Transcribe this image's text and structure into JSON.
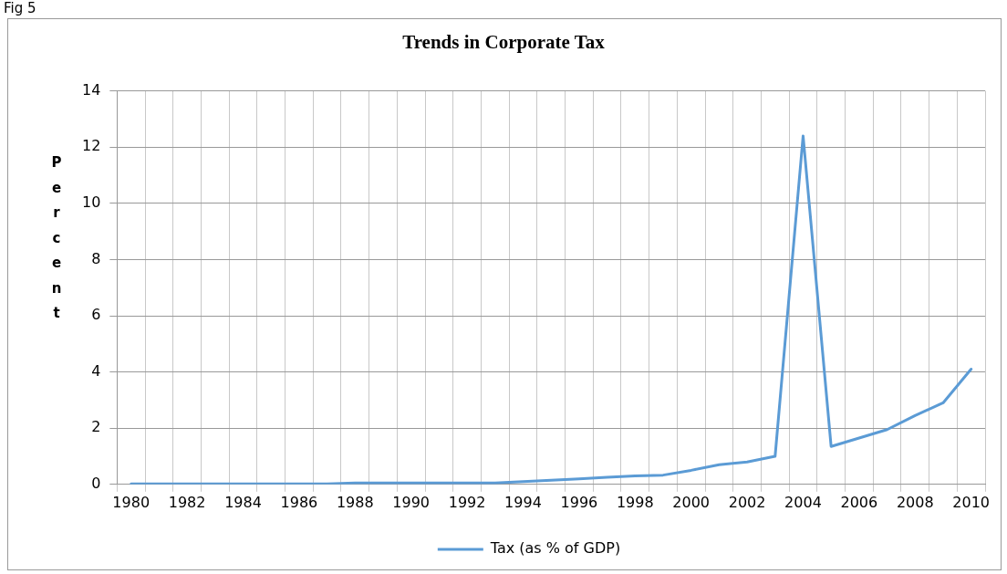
{
  "chart_data": {
    "type": "line",
    "title": "Trends in Corporate Tax",
    "ylabel": "Percent",
    "annotations": [
      "Fig 5"
    ],
    "categories": [
      "1980",
      null,
      "1982",
      null,
      "1984",
      null,
      "1986",
      null,
      "1988",
      null,
      "1990",
      null,
      "1992",
      null,
      "1994",
      null,
      "1996",
      null,
      "1998",
      null,
      "2000",
      null,
      "2002",
      null,
      "2004",
      null,
      "2006",
      null,
      "2008",
      null,
      "2010"
    ],
    "series": [
      {
        "name": "Tax (as % of GDP)",
        "color": "#5b9bd5",
        "values": [
          0.02,
          0.02,
          0.02,
          0.02,
          0.02,
          0.02,
          0.02,
          0.02,
          0.05,
          0.05,
          0.05,
          0.05,
          0.05,
          0.05,
          0.1,
          0.15,
          0.2,
          0.25,
          0.3,
          0.33,
          0.5,
          0.7,
          0.8,
          1.0,
          12.4,
          1.35,
          1.65,
          1.95,
          2.45,
          2.9,
          4.1
        ]
      }
    ],
    "ylim": [
      0,
      14
    ],
    "yticks": [
      0,
      2,
      4,
      6,
      8,
      10,
      12,
      14
    ],
    "grid": true,
    "legend": "bottom",
    "marker": "none",
    "line_style": "solid"
  }
}
